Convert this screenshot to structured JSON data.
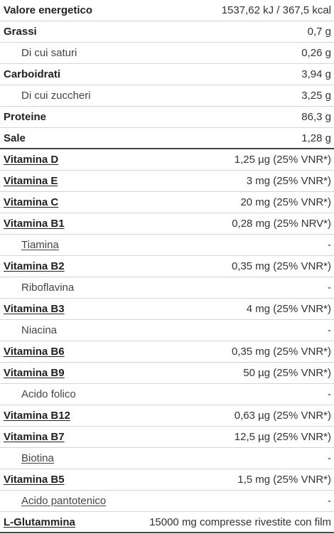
{
  "rows": [
    {
      "label": "Valore energetico",
      "value": "1537,62 kJ / 367,5 kcal"
    },
    {
      "label": "Grassi",
      "value": "0,7 g"
    },
    {
      "label": "Di cui saturi",
      "value": "0,26 g"
    },
    {
      "label": "Carboidrati",
      "value": "3,94 g"
    },
    {
      "label": "Di cui zuccheri",
      "value": "3,25 g"
    },
    {
      "label": "Proteine",
      "value": "86,3 g"
    },
    {
      "label": "Sale",
      "value": "1,28 g"
    },
    {
      "label": "Vitamina D",
      "value": "1,25 µg (25% VNR*)"
    },
    {
      "label": "Vitamina E",
      "value": "3 mg (25% VNR*)"
    },
    {
      "label": "Vitamina C",
      "value": "20 mg (25% VNR*)"
    },
    {
      "label": "Vitamina B1",
      "value": "0,28 mg (25% NRV*)"
    },
    {
      "label": "Tiamina",
      "value": "-"
    },
    {
      "label": "Vitamina B2",
      "value": "0,35 mg (25% VNR*)"
    },
    {
      "label": "Riboflavina",
      "value": "-"
    },
    {
      "label": "Vitamina B3",
      "value": "4 mg (25% VNR*)"
    },
    {
      "label": "Niacina",
      "value": "-"
    },
    {
      "label": "Vitamina B6",
      "value": "0,35 mg (25% VNR*)"
    },
    {
      "label": "Vitamina B9",
      "value": "50 µg (25% VNR*)"
    },
    {
      "label": "Acido folico",
      "value": "-"
    },
    {
      "label": "Vitamina B12",
      "value": "0,63 µg (25% VNR*)"
    },
    {
      "label": "Vitamina B7",
      "value": "12,5 µg (25% VNR*)"
    },
    {
      "label": "Biotina",
      "value": "-"
    },
    {
      "label": "Vitamina B5",
      "value": "1,5 mg (25% VNR*)"
    },
    {
      "label": "Acido pantotenico",
      "value": "-"
    },
    {
      "label": "L-Glutammina",
      "value": "15000 mg compresse rivestite con film"
    }
  ]
}
